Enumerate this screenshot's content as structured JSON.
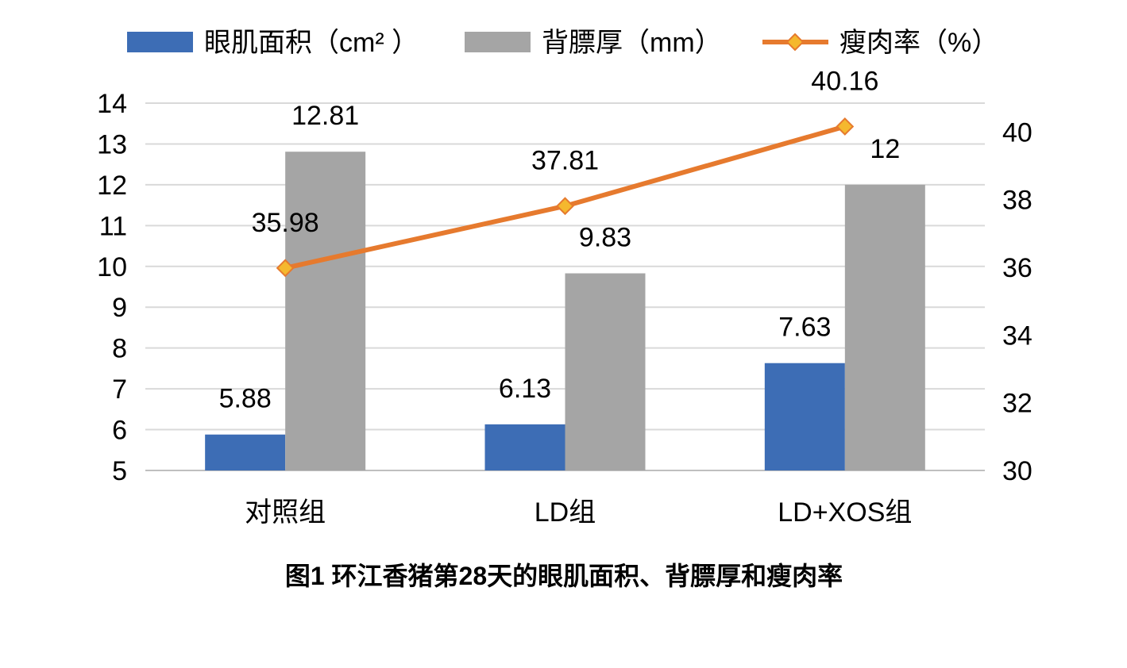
{
  "chart_data": {
    "type": "bar",
    "title": "图1 环江香猪第28天的眼肌面积、背膘厚和瘦肉率",
    "categories": [
      "对照组",
      "LD组",
      "LD+XOS组"
    ],
    "series": [
      {
        "name": "眼肌面积（cm² ）",
        "type": "bar",
        "axis": "left",
        "color": "#3D6DB5",
        "values": [
          5.88,
          6.13,
          7.63
        ],
        "labels": [
          "5.88",
          "6.13",
          "7.63"
        ]
      },
      {
        "name": "背膘厚（mm）",
        "type": "bar",
        "axis": "left",
        "color": "#A5A5A5",
        "values": [
          12.81,
          9.83,
          12
        ],
        "labels": [
          "12.81",
          "9.83",
          "12"
        ]
      },
      {
        "name": "瘦肉率（%）",
        "type": "line",
        "axis": "right",
        "color": "#E67A2E",
        "marker_color": "#F5B82E",
        "values": [
          35.98,
          37.81,
          40.16
        ],
        "labels": [
          "35.98",
          "37.81",
          "40.16"
        ]
      }
    ],
    "left_axis": {
      "min": 5,
      "max": 14,
      "ticks": [
        "5",
        "6",
        "7",
        "8",
        "9",
        "10",
        "11",
        "12",
        "13",
        "14"
      ]
    },
    "right_axis": {
      "min": 30,
      "max": 40.85,
      "ticks": [
        "30",
        "32",
        "34",
        "36",
        "38",
        "40"
      ]
    },
    "grid": true,
    "legend_position": "top"
  }
}
